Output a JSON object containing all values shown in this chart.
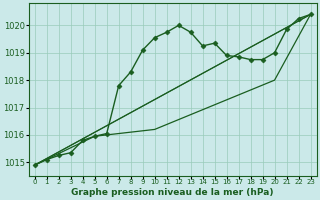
{
  "xlabel": "Graphe pression niveau de la mer (hPa)",
  "xlim": [
    -0.5,
    23.5
  ],
  "ylim": [
    1014.5,
    1020.8
  ],
  "yticks": [
    1015,
    1016,
    1017,
    1018,
    1019,
    1020
  ],
  "xticks": [
    0,
    1,
    2,
    3,
    4,
    5,
    6,
    7,
    8,
    9,
    10,
    11,
    12,
    13,
    14,
    15,
    16,
    17,
    18,
    19,
    20,
    21,
    22,
    23
  ],
  "background_color": "#cbe9e9",
  "grid_color": "#99ccbb",
  "line_color": "#1a5e20",
  "series_main": {
    "x": [
      0,
      1,
      2,
      3,
      4,
      5,
      6,
      7,
      8,
      9,
      10,
      11,
      12,
      13,
      14,
      15,
      16,
      17,
      18,
      19,
      20,
      21,
      22,
      23
    ],
    "y": [
      1014.9,
      1015.1,
      1015.25,
      1015.35,
      1015.8,
      1015.95,
      1016.05,
      1017.8,
      1018.3,
      1019.1,
      1019.55,
      1019.75,
      1020.0,
      1019.75,
      1019.25,
      1019.35,
      1018.9,
      1018.85,
      1018.75,
      1018.75,
      1019.0,
      1019.85,
      1020.25,
      1020.4
    ],
    "marker": "D",
    "markersize": 2.5,
    "linewidth": 1.0
  },
  "series_secondary": [
    {
      "x": [
        0,
        5,
        10,
        15,
        20,
        23
      ],
      "y": [
        1014.9,
        1015.95,
        1016.2,
        1017.1,
        1018.0,
        1020.4
      ],
      "linewidth": 0.9
    },
    {
      "x": [
        0,
        23
      ],
      "y": [
        1014.9,
        1020.4
      ],
      "linewidth": 0.9
    },
    {
      "x": [
        0,
        23
      ],
      "y": [
        1014.9,
        1020.4
      ],
      "linewidth": 0.7
    }
  ]
}
